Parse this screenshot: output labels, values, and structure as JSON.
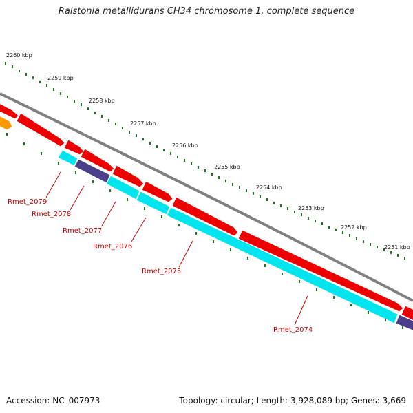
{
  "title": "Ralstonia metallidurans CH34 chromosome 1, complete sequence",
  "accession_text": "Accession: NC_007973",
  "summary_text": "Topology: circular; Length: 3,928,089 bp; Genes: 3,669",
  "colors": {
    "backbone": "#808080",
    "forward_cds": "#ee0000",
    "reverse_cds": "#00e5ee",
    "reverse_dark": "#4b3f8a",
    "forward_other": "#ff9900",
    "tick": "#1a7a1a",
    "label": "#cc0000"
  },
  "kbp_ruler": [
    "2260 kbp",
    "2259 kbp",
    "2258 kbp",
    "2257 kbp",
    "2256 kbp",
    "2255 kbp",
    "2254 kbp",
    "2253 kbp",
    "2252 kbp",
    "2251 kbp"
  ],
  "gene_labels": [
    "Rmet_2079",
    "Rmet_2078",
    "Rmet_2077",
    "Rmet_2076",
    "Rmet_2075",
    "Rmet_2074"
  ]
}
